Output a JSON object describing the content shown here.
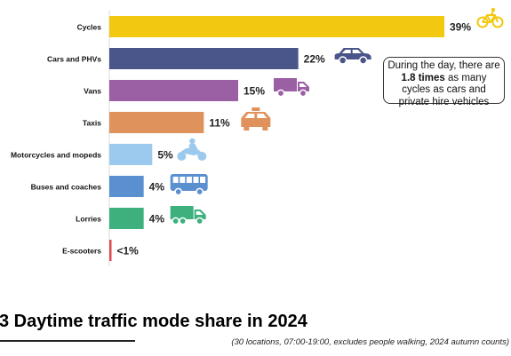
{
  "chart_data": {
    "type": "bar",
    "orientation": "horizontal",
    "categories": [
      "Cycles",
      "Cars and PHVs",
      "Vans",
      "Taxis",
      "Motorcycles and mopeds",
      "Buses and coaches",
      "Lorries",
      "E-scooters"
    ],
    "values": [
      39,
      22,
      15,
      11,
      5,
      4,
      4,
      0.5
    ],
    "labels": [
      "39%",
      "22%",
      "15%",
      "11%",
      "5%",
      "4%",
      "4%",
      "<1%"
    ],
    "colors": [
      "#f2c811",
      "#4a5689",
      "#9b5fa3",
      "#e0925c",
      "#9ccaee",
      "#5a8fd0",
      "#3db07e",
      "#e04a52"
    ],
    "icons": [
      "bicycle-icon",
      "car-icon",
      "van-icon",
      "taxi-icon",
      "motorcycle-icon",
      "bus-icon",
      "lorry-icon",
      ""
    ],
    "xlim": [
      0,
      42
    ],
    "grid": false,
    "title": "3 Daytime traffic mode share in 2024",
    "note": "(30 locations, 07:00-19:00, excludes people walking, 2024 autumn counts)"
  },
  "callout": {
    "text_before": "During the day, there are",
    "bold": "1.8 times",
    "text_after": "as many cycles as cars and private hire vehicles"
  }
}
